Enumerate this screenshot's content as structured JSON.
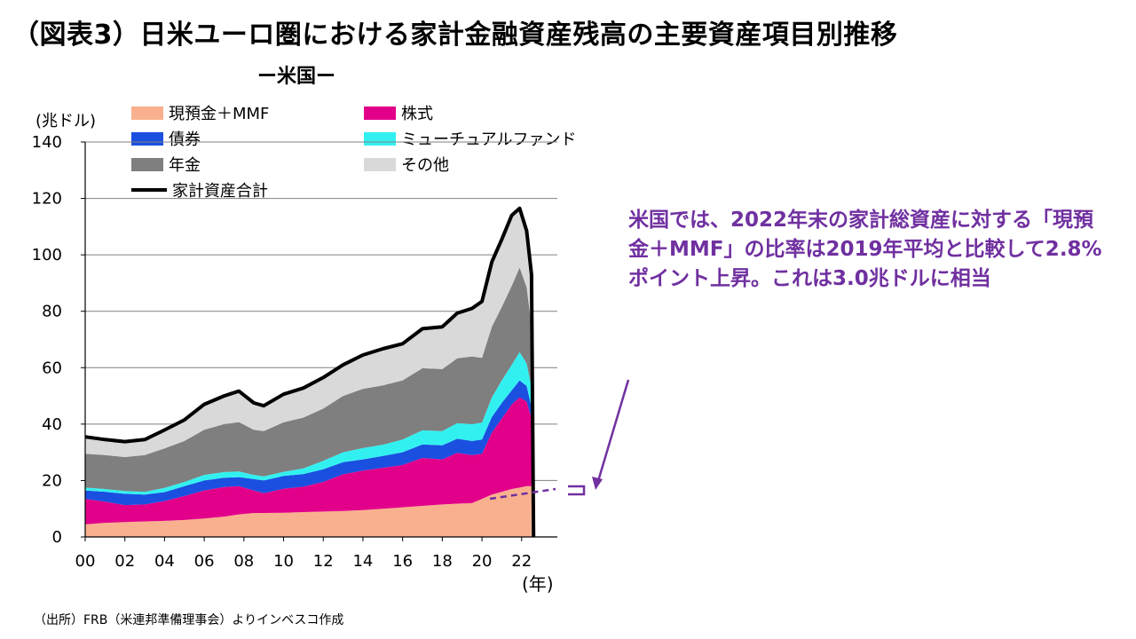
{
  "title": "（図表3）日米ユーロ圏における家計金融資産残高の主要資産項目別推移",
  "subtitle": "ー米国ー",
  "source": "（出所）FRB（米連邦準備理事会）よりインベスコ作成",
  "annotation": "米国では、2022年末の家計総資産に対する「現預金＋MMF」の比率は2019年平均と比較して2.8%ポイント上昇。これは3.0兆ドルに相当",
  "colors": {
    "cash": "#f9b08e",
    "equity": "#e2008a",
    "bonds": "#1a4fe0",
    "funds": "#33f0f0",
    "pension": "#7f7f7f",
    "other": "#d9d9d9",
    "total": "#000000",
    "annotation": "#7030a0"
  },
  "chart_data": {
    "type": "area",
    "stacked": true,
    "ylabel": "(兆ドル)",
    "xlabel": "(年)",
    "ylim": [
      0,
      140
    ],
    "yticks": [
      0,
      20,
      40,
      60,
      80,
      100,
      120,
      140
    ],
    "xticks": [
      "00",
      "02",
      "04",
      "06",
      "08",
      "10",
      "12",
      "14",
      "16",
      "18",
      "20",
      "22"
    ],
    "grid": true,
    "legend_position": "top-left",
    "x": [
      2000,
      2001,
      2002,
      2003,
      2004,
      2005,
      2006,
      2007,
      2007.75,
      2008.5,
      2009,
      2010,
      2011,
      2012,
      2013,
      2014,
      2015,
      2016,
      2017,
      2018,
      2018.75,
      2019.5,
      2020,
      2020.5,
      2021,
      2021.5,
      2021.9,
      2022.25,
      2022.5
    ],
    "series": [
      {
        "name": "現預金＋MMF",
        "values": [
          4.5,
          5,
          5.3,
          5.5,
          5.7,
          6,
          6.5,
          7.2,
          8,
          8.5,
          8.5,
          8.6,
          8.8,
          9,
          9.2,
          9.5,
          10,
          10.5,
          11,
          11.5,
          11.8,
          12,
          13.5,
          15,
          16,
          17,
          17.5,
          18,
          18
        ]
      },
      {
        "name": "株式",
        "values": [
          9,
          7.5,
          6,
          6,
          7,
          8.5,
          10,
          10.5,
          10,
          8,
          7,
          8.5,
          9,
          10.5,
          13,
          14,
          14.5,
          15,
          17,
          16,
          18,
          17,
          16,
          22,
          26,
          30,
          32,
          30,
          24
        ]
      },
      {
        "name": "債券",
        "values": [
          3,
          3.5,
          4,
          3.5,
          3.2,
          3.5,
          3.5,
          3.3,
          3.2,
          4,
          4.5,
          4.5,
          4.5,
          4.5,
          4.3,
          4,
          4.2,
          4.5,
          4.8,
          5,
          5,
          5,
          5,
          5.5,
          5.5,
          5,
          6,
          5.5,
          4
        ]
      },
      {
        "name": "ミューチュアルファンド",
        "values": [
          1,
          1,
          1,
          1,
          1.5,
          1.5,
          2,
          2,
          2,
          1.5,
          1.5,
          1.5,
          2,
          3,
          3.5,
          4,
          4,
          4.5,
          5,
          5,
          5.5,
          6,
          6,
          7,
          8,
          9,
          10,
          8,
          7
        ]
      },
      {
        "name": "年金",
        "values": [
          12,
          12,
          12,
          13,
          14,
          14.5,
          16,
          17,
          17.5,
          16,
          16,
          17.5,
          18,
          18.5,
          20,
          21,
          21,
          21,
          22,
          22,
          23,
          24,
          23,
          25,
          26,
          28,
          30,
          27,
          22
        ]
      },
      {
        "name": "その他",
        "values": [
          6,
          5.5,
          5.5,
          5.5,
          6.5,
          7.5,
          9,
          10,
          11,
          9.5,
          9,
          10,
          10.5,
          11,
          11,
          12,
          13,
          13,
          14,
          15,
          16,
          17,
          20,
          23,
          24,
          25,
          21,
          20,
          18
        ]
      }
    ],
    "total": {
      "name": "家計資産合計",
      "values": [
        35.5,
        34.5,
        33.8,
        34.5,
        37.9,
        41.5,
        47,
        50,
        51.7,
        47.5,
        46.5,
        50.6,
        52.8,
        56.5,
        61,
        64.5,
        66.7,
        68.5,
        73.8,
        74.5,
        79.3,
        81,
        83.5,
        97.5,
        105.5,
        114,
        116.5,
        108.5,
        93
      ]
    }
  }
}
